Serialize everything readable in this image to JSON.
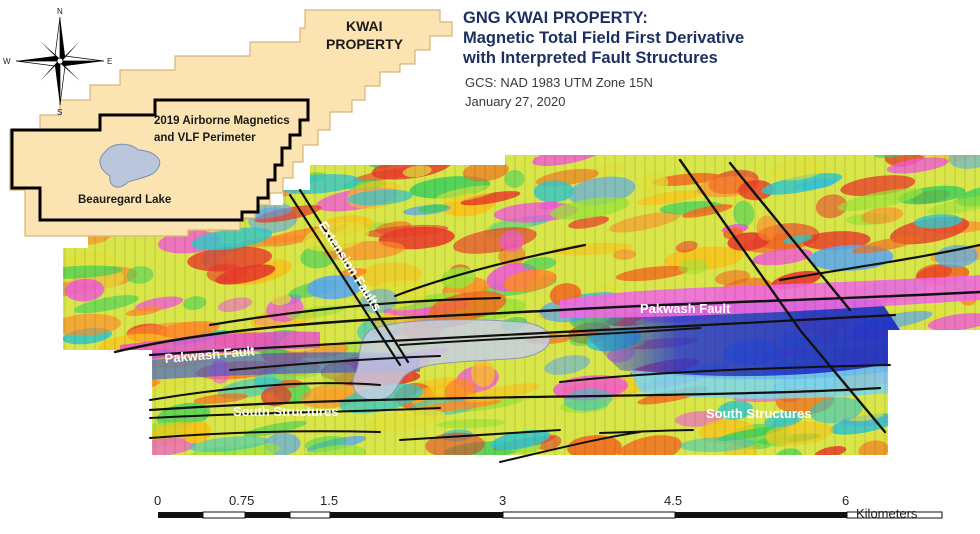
{
  "title": {
    "line1": "GNG KWAI PROPERTY:",
    "line2": "Magnetic Total Field First Derivative",
    "line3": "with Interpreted Fault Structures"
  },
  "projection": "GCS: NAD 1983 UTM Zone 15N",
  "date": "January 27, 2020",
  "compass": {
    "n": "N",
    "s": "S",
    "e": "E",
    "w": "W"
  },
  "inset": {
    "property_label_line1": "KWAI",
    "property_label_line2": "PROPERTY",
    "perimeter_label_line1": "2019 Airborne Magnetics",
    "perimeter_label_line2": "and VLF Perimeter",
    "lake_label": "Beauregard Lake"
  },
  "map_labels": {
    "extension_faults": "Extension Faults",
    "pakwash_fault_east": "Pakwash Fault",
    "pakwash_fault_west": "Pakwash Fault",
    "south_structures_west": "South Structures",
    "south_structures_east": "South Structures"
  },
  "scale_bar": {
    "ticks": [
      "0",
      "0.75",
      "1.5",
      "3",
      "4.5",
      "6"
    ],
    "unit": "Kilometers"
  },
  "colors": {
    "title": "#1c2f5e",
    "property_fill": "#fbe3b2",
    "fault_line": "#111111",
    "label_text": "#ffffff",
    "lake_fill": "#b9c6dc"
  }
}
